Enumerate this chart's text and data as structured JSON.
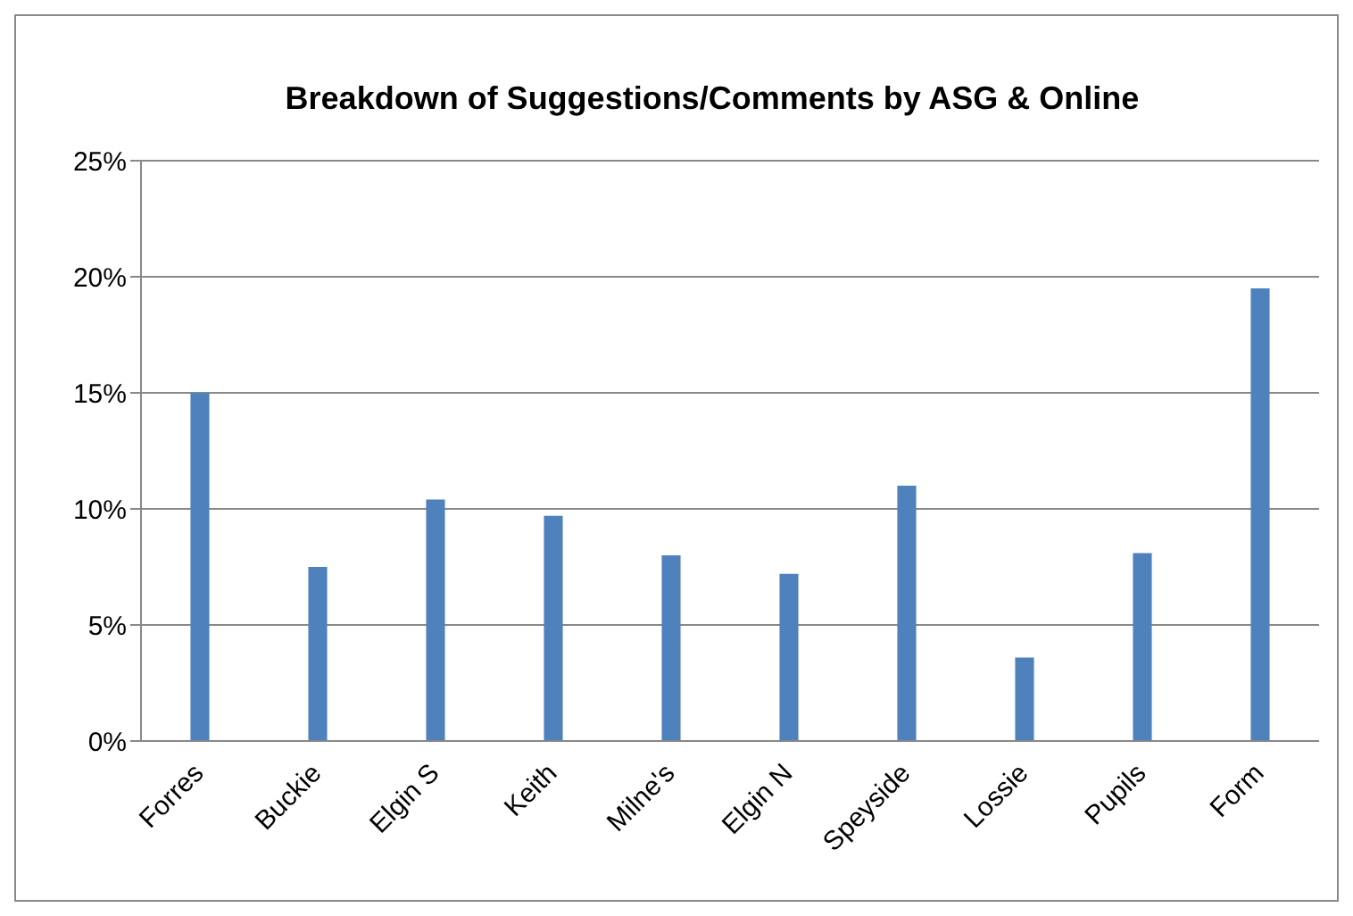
{
  "chart_data": {
    "type": "bar",
    "title": "Breakdown of Suggestions/Comments by ASG & Online",
    "categories": [
      "Forres",
      "Buckie",
      "Elgin S",
      "Keith",
      "Milne's",
      "Elgin N",
      "Speyside",
      "Lossie",
      "Pupils",
      "Form"
    ],
    "values": [
      15.0,
      7.5,
      10.4,
      9.7,
      8.0,
      7.2,
      11.0,
      3.6,
      8.1,
      19.5
    ],
    "color": "#4f81bd",
    "ylim": [
      0,
      25
    ],
    "yticks": [
      {
        "value": 0,
        "label": "0%"
      },
      {
        "value": 5,
        "label": "5%"
      },
      {
        "value": 10,
        "label": "10%"
      },
      {
        "value": 15,
        "label": "15%"
      },
      {
        "value": 20,
        "label": "20%"
      },
      {
        "value": 25,
        "label": "25%"
      }
    ],
    "grid": "y",
    "legend": false
  }
}
